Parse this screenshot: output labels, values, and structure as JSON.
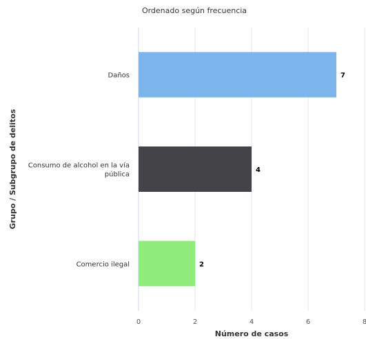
{
  "chart_data": {
    "type": "bar",
    "orientation": "horizontal",
    "subtitle": "Ordenado según frecuencia",
    "xlabel": "Número de casos",
    "ylabel": "Grupo / Subgrupo de delitos",
    "categories": [
      [
        "Daños"
      ],
      [
        "Consumo de alcohol en la vía",
        "pública"
      ],
      [
        "Comercio ilegal"
      ]
    ],
    "values": [
      7,
      4,
      2
    ],
    "colors": [
      "#7cb5ec",
      "#434348",
      "#90ed7d"
    ],
    "xlim": [
      0,
      8
    ],
    "xticks": [
      0,
      2,
      4,
      6,
      8
    ],
    "grid": true,
    "data_labels": true
  }
}
